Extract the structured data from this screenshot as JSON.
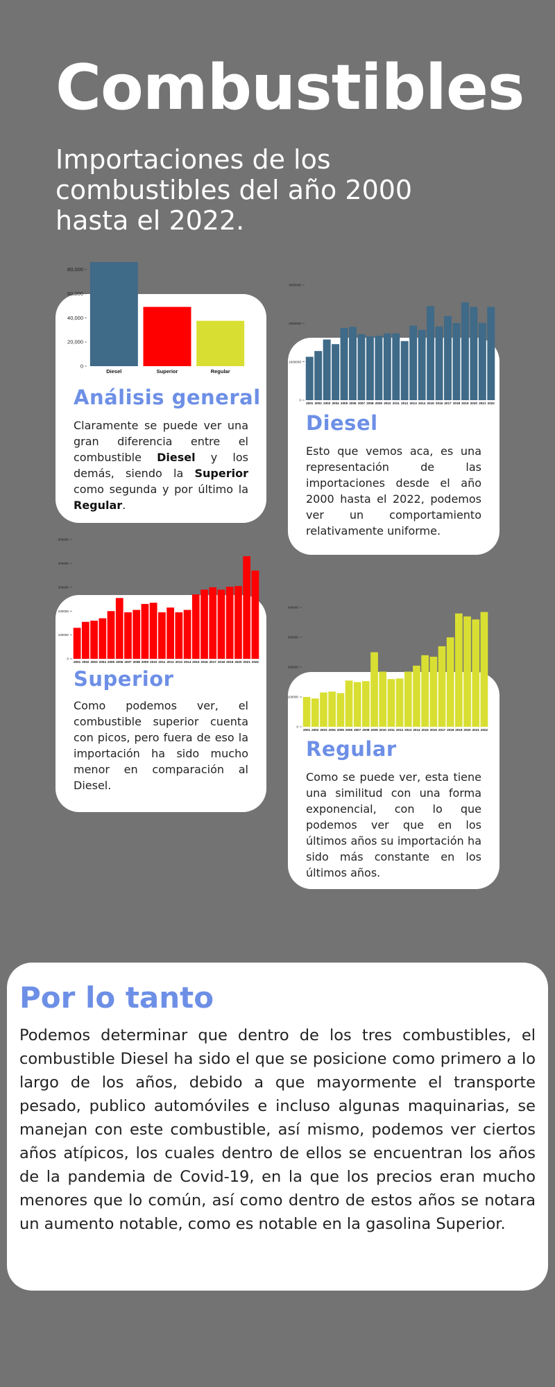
{
  "header": {
    "title": "Combustibles",
    "subtitle": "Importaciones de los combustibles del año 2000 hasta el 2022."
  },
  "cards": {
    "general": {
      "heading": "Análisis general",
      "t1": "Claramente se puede ver una gran diferencia entre el combustible ",
      "b1": "Diesel",
      "t2": " y los demás, siendo la ",
      "b2": "Superior",
      "t3": " como segunda y por último la ",
      "b3": "Regular",
      "t4": "."
    },
    "diesel": {
      "heading": "Diesel",
      "text": "Esto que vemos aca, es una representación de las importaciones desde el año 2000 hasta el 2022, podemos ver un comportamiento relativamente uniforme."
    },
    "superior": {
      "heading": "Superior",
      "text": "Como podemos ver, el combustible superior cuenta con picos, pero fuera de eso la importación ha sido mucho menor en comparación al Diesel."
    },
    "regular": {
      "heading": "Regular",
      "text": "Como se puede ver, esta tiene una similitud con una forma exponencial, con lo que podemos ver que en los últimos años su importación ha sido más constante en los últimos años."
    }
  },
  "conclusion": {
    "heading": "Por lo tanto",
    "text": "Podemos determinar que dentro de los tres combustibles, el combustible Diesel ha sido el que se posicione como primero a lo largo de los años, debido a que mayormente el transporte pesado, publico automóviles e incluso algunas maquinarias, se manejan con este combustible, así mismo, podemos ver ciertos años atípicos, los cuales dentro de ellos se encuentran los años de la pandemia de Covid-19, en la que los precios eran mucho menores que lo común, así como dentro de estos años se notara un aumento notable,  como es notable en la gasolina Superior."
  },
  "chart_data": [
    {
      "id": "overview",
      "type": "bar",
      "categories": [
        "Diesel",
        "Superior",
        "Regular"
      ],
      "values": [
        86000,
        49000,
        37500
      ],
      "colors": [
        "#3f6a88",
        "#ff0000",
        "#d9df32"
      ],
      "yticks": [
        0,
        20000,
        40000,
        60000,
        80000
      ],
      "ytick_labels": [
        "0",
        "20,000",
        "40,000",
        "60,000",
        "80,000"
      ],
      "ylim": [
        0,
        86000
      ],
      "grid": false
    },
    {
      "id": "diesel",
      "type": "bar",
      "categories": [
        "2001",
        "2002",
        "2003",
        "2004",
        "2005",
        "2006",
        "2007",
        "2008",
        "2009",
        "2010",
        "2011",
        "2012",
        "2013",
        "2014",
        "2015",
        "2016",
        "2017",
        "2018",
        "2019",
        "2020",
        "2021",
        "2022"
      ],
      "values": [
        1130000,
        1280000,
        1580000,
        1460000,
        1880000,
        1910000,
        1720000,
        1660000,
        1680000,
        1740000,
        1740000,
        1540000,
        1940000,
        1830000,
        2450000,
        1920000,
        2190000,
        2010000,
        2550000,
        2430000,
        2010000,
        2430000
      ],
      "color": "#3f6a88",
      "yticks": [
        0,
        1000000,
        2000000,
        3000000
      ],
      "ytick_labels": [
        "0",
        "1000000",
        "2000000",
        "3000000"
      ],
      "ylim": [
        0,
        3000000
      ],
      "grid": false
    },
    {
      "id": "superior",
      "type": "bar",
      "categories": [
        "2001",
        "2002",
        "2003",
        "2004",
        "2005",
        "2006",
        "2007",
        "2008",
        "2009",
        "2010",
        "2011",
        "2012",
        "2013",
        "2014",
        "2015",
        "2016",
        "2017",
        "2018",
        "2019",
        "2020",
        "2021",
        "2022"
      ],
      "values": [
        130000,
        155000,
        160000,
        170000,
        200000,
        255000,
        195000,
        205000,
        230000,
        235000,
        195000,
        215000,
        195000,
        205000,
        270000,
        290000,
        300000,
        290000,
        302000,
        305000,
        430000,
        370000
      ],
      "color": "#ff0000",
      "yticks": [
        0,
        100000,
        200000,
        300000,
        400000,
        500000
      ],
      "ytick_labels": [
        "0",
        "100000",
        "200000",
        "300000",
        "400000",
        "500000"
      ],
      "ylim": [
        0,
        500000
      ],
      "grid": false
    },
    {
      "id": "regular",
      "type": "bar",
      "categories": [
        "2001",
        "2002",
        "2003",
        "2004",
        "2005",
        "2006",
        "2007",
        "2008",
        "2009",
        "2010",
        "2011",
        "2012",
        "2013",
        "2014",
        "2015",
        "2016",
        "2017",
        "2018",
        "2019",
        "2020",
        "2021",
        "2022"
      ],
      "values": [
        100000,
        95000,
        115000,
        118000,
        113000,
        155000,
        150000,
        153000,
        250000,
        185000,
        160000,
        162000,
        185000,
        205000,
        240000,
        235000,
        270000,
        300000,
        380000,
        370000,
        360000,
        385000
      ],
      "color": "#d9df32",
      "yticks": [
        0,
        100000,
        200000,
        300000,
        400000
      ],
      "ytick_labels": [
        "0",
        "100000",
        "200000",
        "300000",
        "400000"
      ],
      "ylim": [
        0,
        400000
      ],
      "grid": false
    }
  ]
}
